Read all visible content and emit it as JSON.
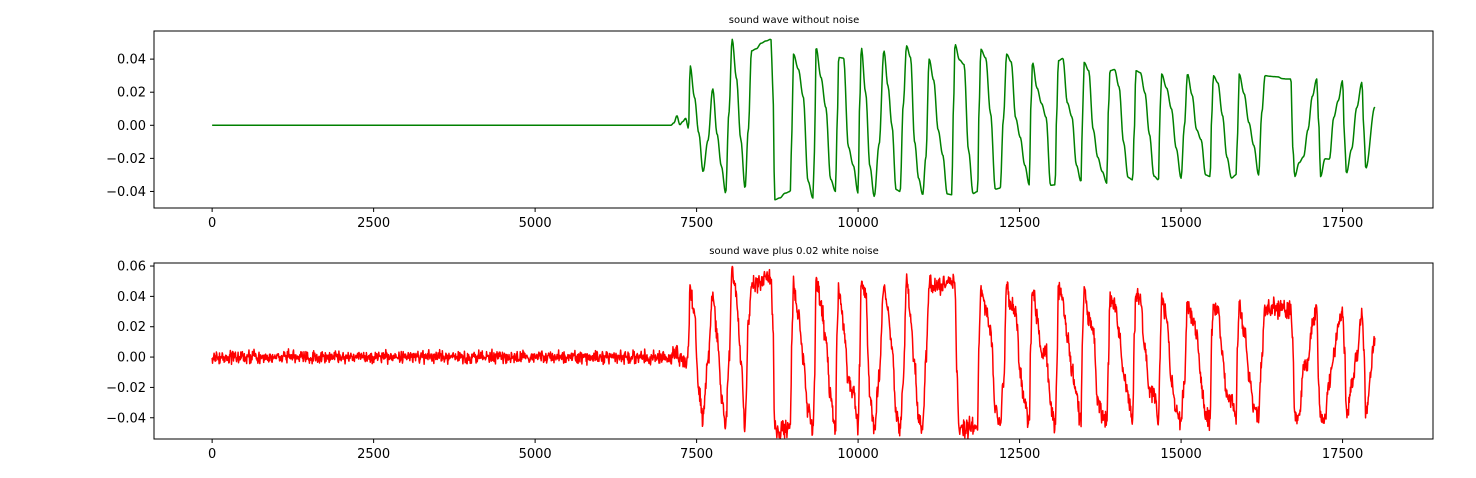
{
  "chart_data": [
    {
      "type": "line",
      "title": "sound wave without noise",
      "xlabel": "",
      "ylabel": "",
      "xlim": [
        -900,
        18900
      ],
      "ylim": [
        -0.05,
        0.057
      ],
      "xticks": [
        0,
        2500,
        5000,
        7500,
        10000,
        12500,
        15000,
        17500
      ],
      "xtick_labels": [
        "0",
        "2500",
        "5000",
        "7500",
        "10000",
        "12500",
        "15000",
        "17500"
      ],
      "yticks": [
        0.04,
        0.02,
        0.0,
        -0.02,
        -0.04
      ],
      "ytick_labels": [
        "0.04",
        "0.02",
        "0.00",
        "−0.02",
        "−0.04"
      ],
      "grid": false,
      "legend": "none",
      "series": [
        {
          "color": "#008000",
          "x_range": [
            0,
            18000
          ],
          "silent_until": 7100,
          "signal_onset": 7150,
          "noise_amplitude": 0,
          "peaks": [
            {
              "x": 7400,
              "y": 0.036
            },
            {
              "x": 7750,
              "y": 0.022
            },
            {
              "x": 8050,
              "y": 0.052
            },
            {
              "x": 8350,
              "y": 0.045
            },
            {
              "x": 8650,
              "y": 0.052
            },
            {
              "x": 9000,
              "y": 0.043
            },
            {
              "x": 9350,
              "y": 0.047
            },
            {
              "x": 9700,
              "y": 0.041
            },
            {
              "x": 10050,
              "y": 0.047
            },
            {
              "x": 10400,
              "y": 0.045
            },
            {
              "x": 10750,
              "y": 0.048
            },
            {
              "x": 11100,
              "y": 0.04
            },
            {
              "x": 11500,
              "y": 0.049
            },
            {
              "x": 11900,
              "y": 0.046
            },
            {
              "x": 12300,
              "y": 0.043
            },
            {
              "x": 12700,
              "y": 0.038
            },
            {
              "x": 13100,
              "y": 0.039
            },
            {
              "x": 13500,
              "y": 0.038
            },
            {
              "x": 13900,
              "y": 0.033
            },
            {
              "x": 14300,
              "y": 0.033
            },
            {
              "x": 14700,
              "y": 0.031
            },
            {
              "x": 15100,
              "y": 0.031
            },
            {
              "x": 15500,
              "y": 0.03
            },
            {
              "x": 15900,
              "y": 0.031
            },
            {
              "x": 16300,
              "y": 0.03
            },
            {
              "x": 16700,
              "y": 0.028
            },
            {
              "x": 17100,
              "y": 0.028
            },
            {
              "x": 17500,
              "y": 0.027
            },
            {
              "x": 17800,
              "y": 0.026
            }
          ],
          "troughs": [
            {
              "x": 7600,
              "y": -0.028
            },
            {
              "x": 7950,
              "y": -0.041
            },
            {
              "x": 8250,
              "y": -0.038
            },
            {
              "x": 8650,
              "y": -0.045
            },
            {
              "x": 8950,
              "y": -0.04
            },
            {
              "x": 9300,
              "y": -0.044
            },
            {
              "x": 9650,
              "y": -0.04
            },
            {
              "x": 10000,
              "y": -0.041
            },
            {
              "x": 10250,
              "y": -0.043
            },
            {
              "x": 10650,
              "y": -0.04
            },
            {
              "x": 11000,
              "y": -0.042
            },
            {
              "x": 11450,
              "y": -0.042
            },
            {
              "x": 11850,
              "y": -0.04
            },
            {
              "x": 12200,
              "y": -0.038
            },
            {
              "x": 12650,
              "y": -0.036
            },
            {
              "x": 13050,
              "y": -0.036
            },
            {
              "x": 13450,
              "y": -0.034
            },
            {
              "x": 13850,
              "y": -0.035
            },
            {
              "x": 14250,
              "y": -0.033
            },
            {
              "x": 14650,
              "y": -0.033
            },
            {
              "x": 15000,
              "y": -0.032
            },
            {
              "x": 15450,
              "y": -0.031
            },
            {
              "x": 15850,
              "y": -0.03
            },
            {
              "x": 16200,
              "y": -0.03
            },
            {
              "x": 16700,
              "y": -0.031
            },
            {
              "x": 17100,
              "y": -0.031
            },
            {
              "x": 17500,
              "y": -0.029
            },
            {
              "x": 17800,
              "y": -0.026
            }
          ],
          "end_value": 0.011
        }
      ]
    },
    {
      "type": "line",
      "title": "sound wave plus 0.02 white noise",
      "xlabel": "",
      "ylabel": "",
      "xlim": [
        -900,
        18900
      ],
      "ylim": [
        -0.054,
        0.062
      ],
      "xticks": [
        0,
        2500,
        5000,
        7500,
        10000,
        12500,
        15000,
        17500
      ],
      "xtick_labels": [
        "0",
        "2500",
        "5000",
        "7500",
        "10000",
        "12500",
        "15000",
        "17500"
      ],
      "yticks": [
        0.06,
        0.04,
        0.02,
        0.0,
        -0.02,
        -0.04
      ],
      "ytick_labels": [
        "0.06",
        "0.04",
        "0.02",
        "0.00",
        "−0.02",
        "−0.04"
      ],
      "grid": false,
      "legend": "none",
      "series": [
        {
          "color": "#ff0000",
          "x_range": [
            0,
            18000
          ],
          "silent_until": 7100,
          "signal_onset": 7150,
          "noise_amplitude": 0.006,
          "peaks": [
            {
              "x": 7400,
              "y": 0.047
            },
            {
              "x": 7750,
              "y": 0.04
            },
            {
              "x": 8050,
              "y": 0.057
            },
            {
              "x": 8350,
              "y": 0.048
            },
            {
              "x": 8650,
              "y": 0.052
            },
            {
              "x": 9000,
              "y": 0.049
            },
            {
              "x": 9350,
              "y": 0.05
            },
            {
              "x": 9700,
              "y": 0.046
            },
            {
              "x": 10050,
              "y": 0.05
            },
            {
              "x": 10400,
              "y": 0.047
            },
            {
              "x": 10750,
              "y": 0.05
            },
            {
              "x": 11100,
              "y": 0.046
            },
            {
              "x": 11500,
              "y": 0.05
            },
            {
              "x": 11900,
              "y": 0.047
            },
            {
              "x": 12300,
              "y": 0.046
            },
            {
              "x": 12700,
              "y": 0.047
            },
            {
              "x": 13100,
              "y": 0.045
            },
            {
              "x": 13500,
              "y": 0.044
            },
            {
              "x": 13900,
              "y": 0.04
            },
            {
              "x": 14300,
              "y": 0.04
            },
            {
              "x": 14700,
              "y": 0.037
            },
            {
              "x": 15100,
              "y": 0.036
            },
            {
              "x": 15500,
              "y": 0.034
            },
            {
              "x": 15900,
              "y": 0.033
            },
            {
              "x": 16300,
              "y": 0.033
            },
            {
              "x": 16700,
              "y": 0.032
            },
            {
              "x": 17100,
              "y": 0.031
            },
            {
              "x": 17500,
              "y": 0.03
            },
            {
              "x": 17800,
              "y": 0.029
            }
          ],
          "troughs": [
            {
              "x": 7600,
              "y": -0.038
            },
            {
              "x": 7950,
              "y": -0.046
            },
            {
              "x": 8250,
              "y": -0.045
            },
            {
              "x": 8650,
              "y": -0.048
            },
            {
              "x": 8950,
              "y": -0.046
            },
            {
              "x": 9300,
              "y": -0.047
            },
            {
              "x": 9650,
              "y": -0.046
            },
            {
              "x": 10000,
              "y": -0.046
            },
            {
              "x": 10250,
              "y": -0.047
            },
            {
              "x": 10650,
              "y": -0.046
            },
            {
              "x": 11000,
              "y": -0.046
            },
            {
              "x": 11500,
              "y": -0.048
            },
            {
              "x": 11850,
              "y": -0.046
            },
            {
              "x": 12200,
              "y": -0.045
            },
            {
              "x": 12650,
              "y": -0.044
            },
            {
              "x": 13050,
              "y": -0.047
            },
            {
              "x": 13450,
              "y": -0.042
            },
            {
              "x": 13850,
              "y": -0.042
            },
            {
              "x": 14250,
              "y": -0.042
            },
            {
              "x": 14650,
              "y": -0.041
            },
            {
              "x": 15000,
              "y": -0.041
            },
            {
              "x": 15450,
              "y": -0.04
            },
            {
              "x": 15850,
              "y": -0.041
            },
            {
              "x": 16200,
              "y": -0.04
            },
            {
              "x": 16700,
              "y": -0.04
            },
            {
              "x": 17100,
              "y": -0.04
            },
            {
              "x": 17500,
              "y": -0.039
            },
            {
              "x": 17800,
              "y": -0.036
            }
          ],
          "end_value": 0.011
        }
      ]
    }
  ]
}
